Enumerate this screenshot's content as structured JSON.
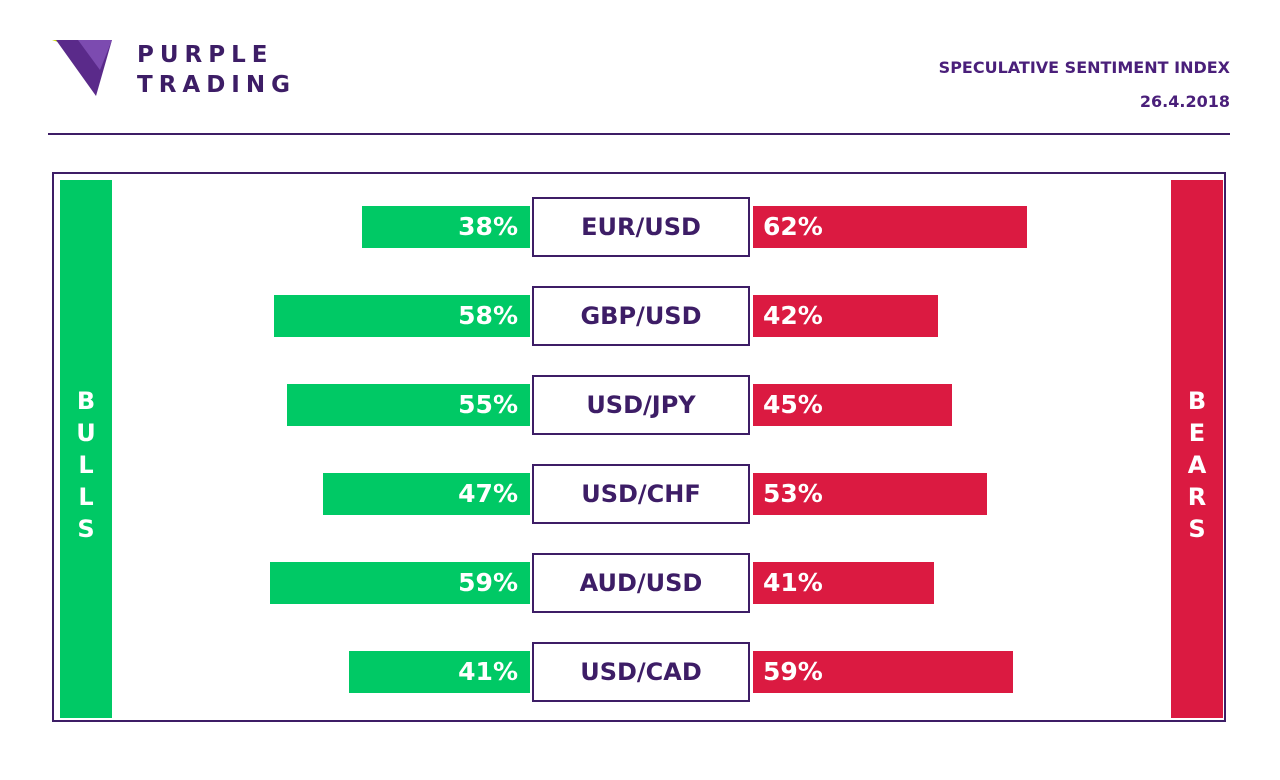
{
  "brand": {
    "line1": "PURPLE",
    "line2": "TRADING"
  },
  "header": {
    "title": "SPECULATIVE SENTIMENT INDEX",
    "date": "26.4.2018"
  },
  "colors": {
    "bulls": "#00c965",
    "bears": "#db1a41",
    "accent": "#3d1d66"
  },
  "chart_data": {
    "type": "bar",
    "title": "SPECULATIVE SENTIMENT INDEX",
    "categories": [
      "EUR/USD",
      "GBP/USD",
      "USD/JPY",
      "USD/CHF",
      "AUD/USD",
      "USD/CAD"
    ],
    "series": [
      {
        "name": "BULLS",
        "values": [
          38,
          58,
          55,
          47,
          59,
          41
        ],
        "labels": [
          "38%",
          "58%",
          "55%",
          "47%",
          "59%",
          "41%"
        ]
      },
      {
        "name": "BEARS",
        "values": [
          62,
          42,
          45,
          53,
          41,
          59
        ],
        "labels": [
          "62%",
          "42%",
          "45%",
          "53%",
          "41%",
          "59%"
        ]
      }
    ]
  }
}
